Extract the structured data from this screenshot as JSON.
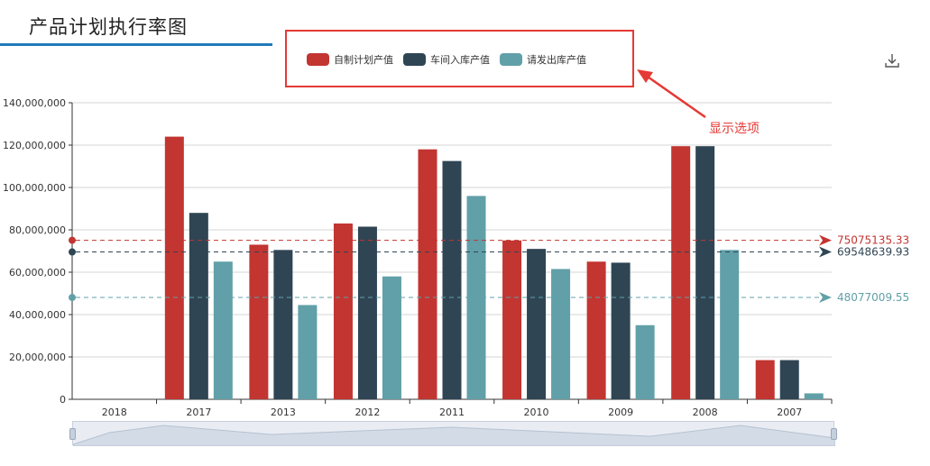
{
  "header": {
    "title": "产品计划执行率图"
  },
  "legend": {
    "items": [
      {
        "label": "自制计划产值",
        "color": "#c23531"
      },
      {
        "label": "车间入库产值",
        "color": "#2f4554"
      },
      {
        "label": "请发出库产值",
        "color": "#61a0a8"
      }
    ]
  },
  "annotation": {
    "text": "显示选项"
  },
  "toolbox": {
    "download_icon": "download-icon"
  },
  "chart_data": {
    "type": "bar",
    "categories": [
      "2018",
      "2017",
      "2013",
      "2012",
      "2011",
      "2010",
      "2009",
      "2008",
      "2007"
    ],
    "series": [
      {
        "name": "自制计划产值",
        "color": "#c23531",
        "values": [
          0,
          124000000,
          73000000,
          83000000,
          118000000,
          75000000,
          65000000,
          119500000,
          18500000
        ]
      },
      {
        "name": "车间入库产值",
        "color": "#2f4554",
        "values": [
          0,
          88000000,
          70500000,
          81500000,
          112500000,
          71000000,
          64500000,
          119500000,
          18500000
        ]
      },
      {
        "name": "请发出库产值",
        "color": "#61a0a8",
        "values": [
          0,
          65000000,
          44500000,
          58000000,
          96000000,
          61500000,
          35000000,
          70500000,
          2800000
        ]
      }
    ],
    "mark_lines": [
      {
        "series": "自制计划产值",
        "value": 75075135.33,
        "label": "75075135.33",
        "color": "#c23531"
      },
      {
        "series": "车间入库产值",
        "value": 69548639.93,
        "label": "69548639.93",
        "color": "#2f4554"
      },
      {
        "series": "请发出库产值",
        "value": 48077009.55,
        "label": "48077009.55",
        "color": "#61a0a8"
      }
    ],
    "y_ticks": [
      "0",
      "20,000,000",
      "40,000,000",
      "60,000,000",
      "80,000,000",
      "100,000,000",
      "120,000,000",
      "140,000,000"
    ],
    "ylim": [
      0,
      140000000
    ],
    "grid": true
  }
}
